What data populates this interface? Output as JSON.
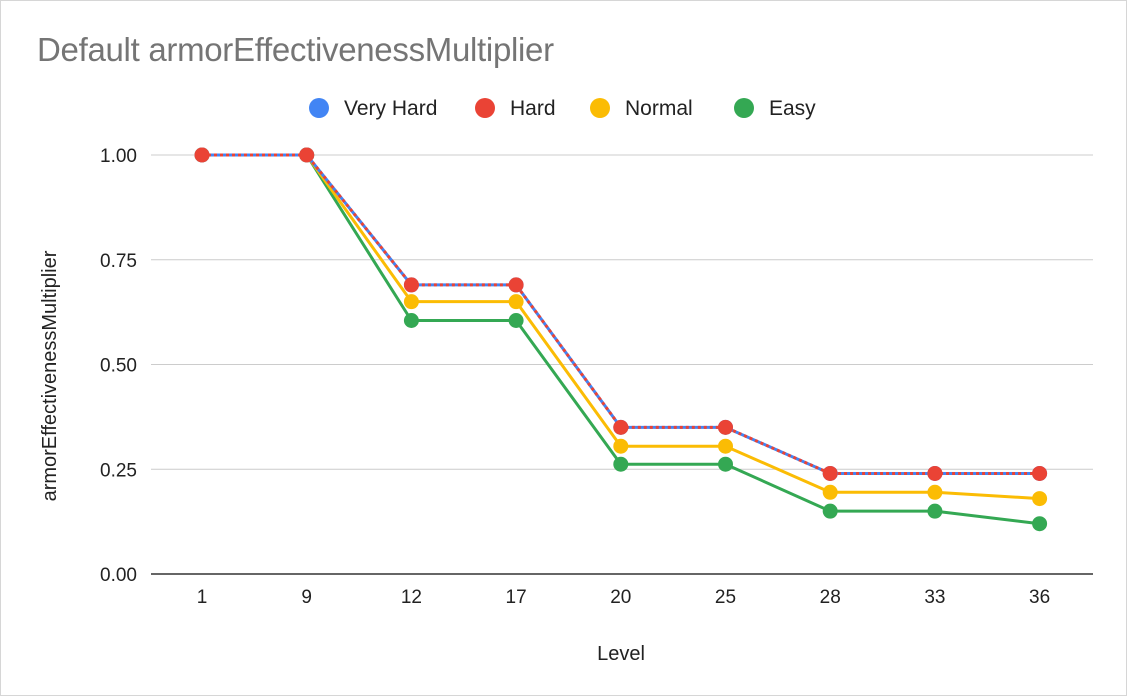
{
  "chart_data": {
    "type": "line",
    "title": "Default armorEffectivenessMultiplier",
    "xlabel": "Level",
    "ylabel": "armorEffectivenessMultiplier",
    "categories": [
      "1",
      "9",
      "12",
      "17",
      "20",
      "25",
      "28",
      "33",
      "36"
    ],
    "ylim": [
      0,
      1
    ],
    "yticks": [
      "0.00",
      "0.25",
      "0.50",
      "0.75",
      "1.00"
    ],
    "grid": true,
    "legend_position": "top",
    "series": [
      {
        "name": "Very Hard",
        "color": "#4285f4",
        "values": [
          1.0,
          1.0,
          0.69,
          0.69,
          0.35,
          0.35,
          0.24,
          0.24,
          0.24
        ]
      },
      {
        "name": "Hard",
        "color": "#ea4335",
        "values": [
          1.0,
          1.0,
          0.69,
          0.69,
          0.35,
          0.35,
          0.24,
          0.24,
          0.24
        ]
      },
      {
        "name": "Normal",
        "color": "#fbbc04",
        "values": [
          1.0,
          1.0,
          0.65,
          0.65,
          0.305,
          0.305,
          0.195,
          0.195,
          0.18
        ]
      },
      {
        "name": "Easy",
        "color": "#34a853",
        "values": [
          1.0,
          1.0,
          0.605,
          0.605,
          0.262,
          0.262,
          0.15,
          0.15,
          0.12
        ]
      }
    ]
  }
}
